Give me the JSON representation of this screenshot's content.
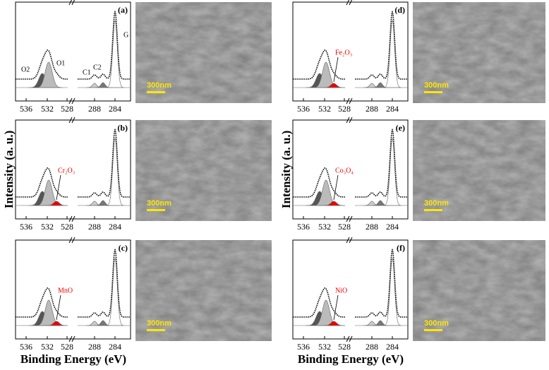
{
  "x_ticks": [
    "536",
    "532",
    "528",
    "288",
    "284"
  ],
  "y_axis_label": "Intensity (a. u.)",
  "x_axis_label": "Binding Energy (eV)",
  "panels": [
    {
      "label": "(a)",
      "annotations": [
        "O2",
        "O1",
        "C1",
        "C2",
        "G"
      ],
      "scale_bar": "300nm"
    },
    {
      "label": "(b)",
      "annotations": [
        "Cr₂O₃"
      ],
      "scale_bar": "300nm"
    },
    {
      "label": "(c)",
      "annotations": [
        "MnO"
      ],
      "scale_bar": "300nm"
    },
    {
      "label": "(d)",
      "annotations": [
        "Fe₂O₃"
      ],
      "scale_bar": "300nm"
    },
    {
      "label": "(e)",
      "annotations": [
        "Co₃O₄"
      ],
      "scale_bar": "300nm"
    },
    {
      "label": "(f)",
      "annotations": [
        "NiO"
      ],
      "scale_bar": "300nm"
    }
  ]
}
